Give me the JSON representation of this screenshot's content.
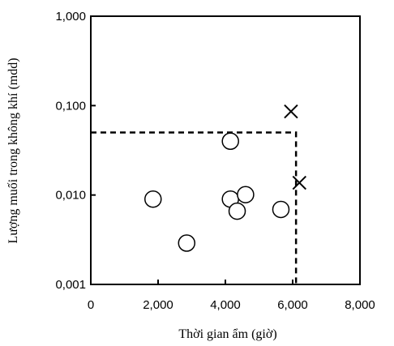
{
  "chart_data": {
    "type": "scatter",
    "xlabel": "Thời gian ẩm (giờ)",
    "ylabel": "Lượng muối trong không khí (mdd)",
    "xlim": [
      0,
      8000
    ],
    "ylim": [
      0.001,
      1
    ],
    "yscale": "log",
    "x_ticks": [
      {
        "value": 0,
        "label": "0"
      },
      {
        "value": 2000,
        "label": "2,000"
      },
      {
        "value": 4000,
        "label": "4,000"
      },
      {
        "value": 6000,
        "label": "6,000"
      },
      {
        "value": 8000,
        "label": "8,000"
      }
    ],
    "y_ticks": [
      {
        "value": 0.001,
        "label": "0,001"
      },
      {
        "value": 0.01,
        "label": "0,010"
      },
      {
        "value": 0.1,
        "label": "0,100"
      },
      {
        "value": 1,
        "label": "1,000"
      }
    ],
    "grid": false,
    "series": [
      {
        "marker": "circle",
        "points": [
          {
            "x": 1850,
            "y": 0.009
          },
          {
            "x": 2850,
            "y": 0.0029
          },
          {
            "x": 4150,
            "y": 0.04
          },
          {
            "x": 4150,
            "y": 0.009
          },
          {
            "x": 4350,
            "y": 0.0066
          },
          {
            "x": 4600,
            "y": 0.0101
          },
          {
            "x": 5650,
            "y": 0.0069
          }
        ]
      },
      {
        "marker": "x",
        "points": [
          {
            "x": 5950,
            "y": 0.086
          },
          {
            "x": 6200,
            "y": 0.0137
          }
        ]
      }
    ],
    "threshold": {
      "style": "dashed",
      "x": 6100,
      "y": 0.05
    }
  }
}
